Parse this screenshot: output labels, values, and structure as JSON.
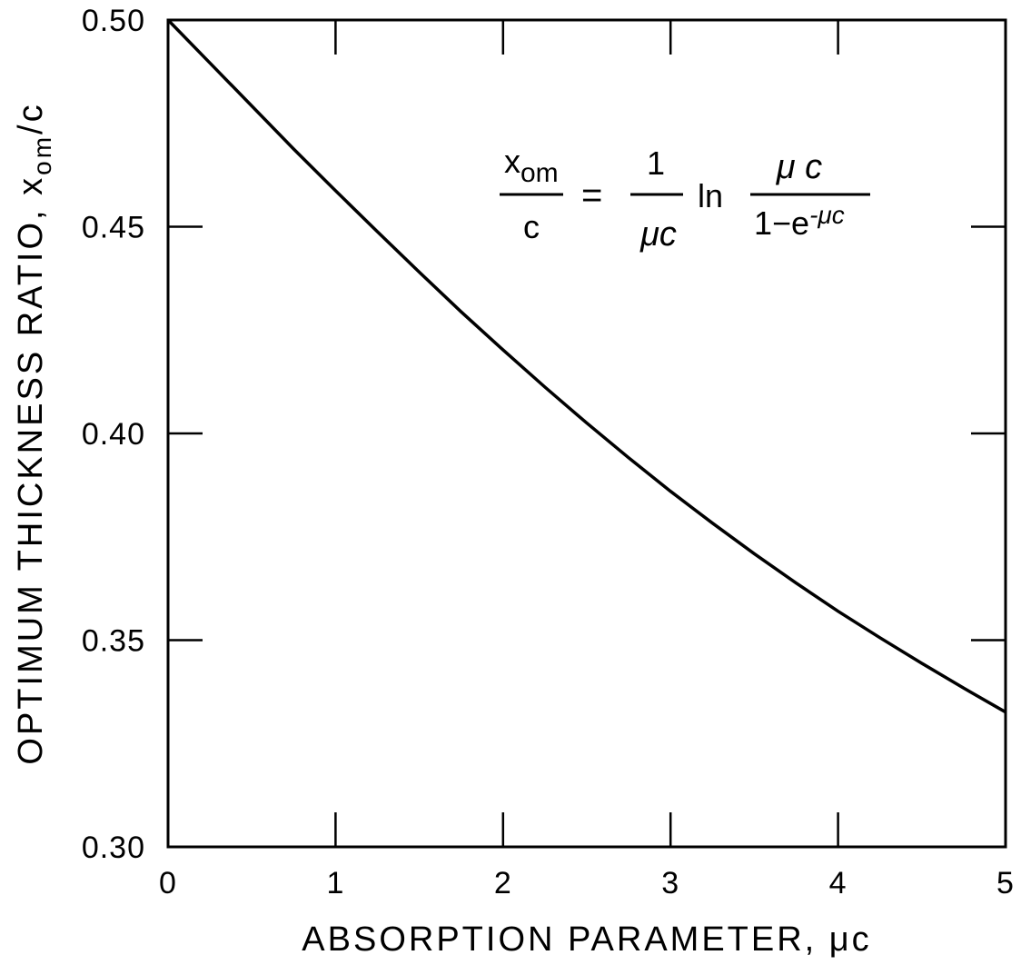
{
  "chart_data": {
    "type": "line",
    "xlabel": "ABSORPTION  PARAMETER, μc",
    "ylabel": "OPTIMUM  THICKNESS RATIO,  x",
    "ylabel_subscript": "om",
    "ylabel_suffix": "/c",
    "xlim": [
      0,
      5
    ],
    "ylim": [
      0.3,
      0.5
    ],
    "x_ticks": [
      0,
      1,
      2,
      3,
      4,
      5
    ],
    "x_tick_labels": [
      "0",
      "1",
      "2",
      "3",
      "4",
      "5"
    ],
    "y_ticks": [
      0.3,
      0.35,
      0.4,
      0.45,
      0.5
    ],
    "y_tick_labels": [
      "0.30",
      "0.35",
      "0.40",
      "0.45",
      "0.50"
    ],
    "grid": false,
    "series": [
      {
        "x": [
          0.0,
          0.25,
          0.5,
          0.75,
          1.0,
          1.25,
          1.5,
          1.75,
          2.0,
          2.25,
          2.5,
          2.75,
          3.0,
          3.25,
          3.5,
          3.75,
          4.0,
          4.25,
          4.5,
          4.75,
          5.0
        ],
        "y": [
          0.5,
          0.4896,
          0.4792,
          0.4688,
          0.4587,
          0.4488,
          0.439,
          0.4294,
          0.4202,
          0.4112,
          0.4025,
          0.3941,
          0.386,
          0.3783,
          0.3709,
          0.3638,
          0.357,
          0.3506,
          0.3444,
          0.3384,
          0.3326
        ]
      }
    ],
    "annotation": {
      "lhs_num": "x",
      "lhs_num_sub": "om",
      "lhs_den": "c",
      "equals": "=",
      "rhs_num": "1",
      "rhs_den": "μc",
      "ln": "ln",
      "frac2_num": "μ c",
      "frac2_den": "1−e",
      "frac2_den_sup": "-μc"
    }
  }
}
